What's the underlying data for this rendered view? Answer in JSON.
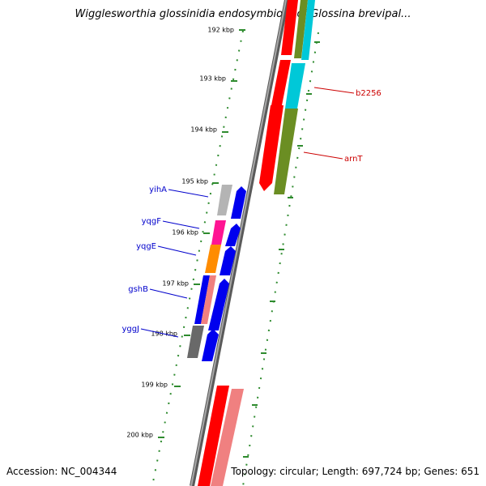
{
  "header": {
    "title": "Wigglesworthia glossinidia endosymbiont of Glossina brevipal..."
  },
  "footer": {
    "accession": "Accession: NC_004344",
    "summary": "Topology: circular; Length: 697,724 bp; Genes: 651"
  },
  "ruler": {
    "ticks": [
      "192 kbp",
      "193 kbp",
      "194 kbp",
      "195 kbp",
      "196 kbp",
      "197 kbp",
      "198 kbp",
      "199 kbp",
      "200 kbp"
    ]
  },
  "gene_labels": {
    "right": [
      "b2256",
      "arnT"
    ],
    "left": [
      "yihA",
      "yqgF",
      "yqgE",
      "gshB",
      "yggJ"
    ]
  },
  "colors": {
    "backbone": "#808080",
    "tick_green": "#2e8b2e",
    "label_left": "#0000cc",
    "label_right": "#cc0000",
    "gene_red": "#ff0000",
    "gene_blue": "#0000ee",
    "gene_pink": "#f08080",
    "gene_olive": "#6b8e23",
    "gene_cyan": "#00c8d8",
    "gene_gray": "#696969",
    "gene_lightgray": "#b4b4b4",
    "gene_magenta": "#ff1493",
    "gene_orange": "#ff8c00"
  }
}
